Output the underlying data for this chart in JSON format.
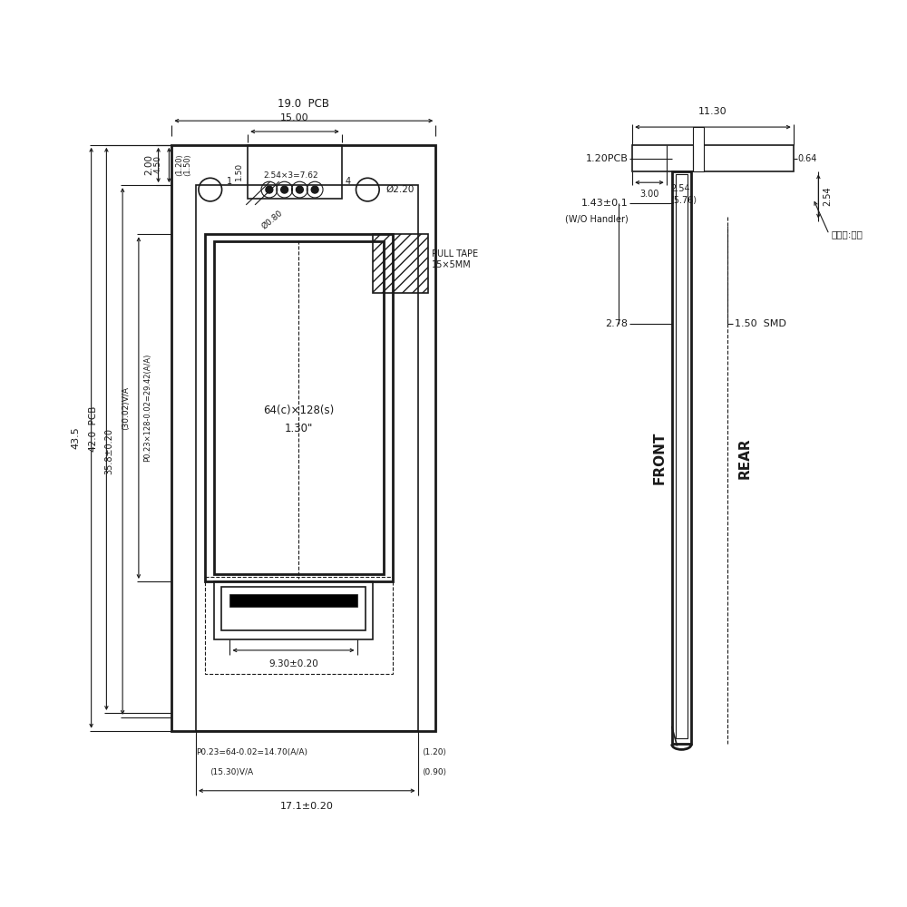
{
  "bg_color": "#ffffff",
  "line_color": "#1a1a1a",
  "figsize": [
    10,
    10
  ],
  "dpi": 100,
  "annotations": {
    "19_0_PCB": "19.0  PCB",
    "15_00": "15.00",
    "2_00": "2.00",
    "1_50t": "1.50",
    "1": "1",
    "4": "4",
    "254x3": "2.54×3=7.62",
    "phi0_80": "Ø0.80",
    "phi2_20": "Ø2.20",
    "pull_tape": "PULL TAPE\n15×5MM",
    "4_50": "4.50",
    "1_20a": "⟨1.20⟩",
    "1_50a": "⟨1.50⟩",
    "43_5": "43.5",
    "42_0PCB": "42.0  PCB",
    "35_8": "35.8±0.20",
    "30_02VA": "⟨30.02⟩V/A",
    "p023_128": "P0.23×128-0.02=29.42(A/A)",
    "screen_label1": "64(c)×128(s)",
    "screen_label2": "1.30\"",
    "9_30": "9.30±0.20",
    "p023_64": "P0.23=64-0.02=14.70(A/A)",
    "15_30VA": "⟨15.30⟩V/A",
    "0_90": "⟨0.90⟩",
    "1_20b": "⟨1.20⟩",
    "17_1": "17.1±0.20",
    "11_30": "11.30",
    "3_00": "3.00",
    "2_54top": "2.54",
    "5_76": "⟨5.76⟩",
    "0_64": "0.64",
    "1_20PCB": "1.20PCB",
    "1_43": "1.43±0.1",
    "wo_handler": "(W/O Handler)",
    "2_54vert": "2.54",
    "biaozhun": "标准件:排针",
    "2_78": "2.78",
    "1_50SMD": "1.50  SMD",
    "FRONT": "FRONT",
    "REAR": "REAR"
  }
}
